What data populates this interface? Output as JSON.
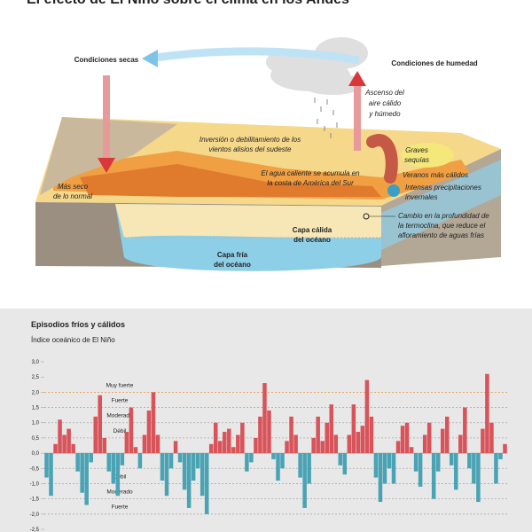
{
  "header": {
    "title": "El efecto de El Niño sobre el clima en los Andes"
  },
  "diagram": {
    "dry": "Condiciones secas",
    "wet": "Condiciones de humedad",
    "rise": [
      "Ascenso del",
      "aire cálido",
      "y húmedo"
    ],
    "winds": [
      "Inversión o debilitamiento de los",
      "vientos alisios del sudeste"
    ],
    "drought": [
      "Graves",
      "sequías"
    ],
    "warm_water": [
      "El agua caliente se acumula en",
      "la costa de América del Sur"
    ],
    "summers": "Veranos más cálidos",
    "drier": [
      "Más seco",
      "de lo normal"
    ],
    "rains": [
      "Intensas precipitaciones",
      "invernales"
    ],
    "thermocline": [
      "Cambio en la profundidad de",
      "la termoclina, que reduce el",
      "afloramiento de aguas frías"
    ],
    "warm_layer": [
      "Capa cálida",
      "del océano"
    ],
    "cold_layer": [
      "Capa fría",
      "del océano"
    ]
  },
  "chart_data": {
    "type": "bar",
    "title": "Episodios fríos y cálidos",
    "subtitle": "Índice oceánico de El Niño",
    "positive_color": "#d9535a",
    "negative_color": "#4aa3b4",
    "ylim": [
      -2.5,
      3
    ],
    "yticks": [
      {
        "value": 3,
        "label": "3,0"
      },
      {
        "value": 2.5,
        "label": "2,5"
      },
      {
        "value": 2,
        "label": "2,0"
      },
      {
        "value": 1.5,
        "label": "1,5"
      },
      {
        "value": 1,
        "label": "1,0"
      },
      {
        "value": 0.5,
        "label": "0,5"
      },
      {
        "value": 0,
        "label": "0,0"
      },
      {
        "value": -0.5,
        "label": "-0,5"
      },
      {
        "value": -1,
        "label": "-1,0"
      },
      {
        "value": -1.5,
        "label": "-1,5"
      },
      {
        "value": -2,
        "label": "-2,0"
      },
      {
        "value": -2.5,
        "label": "-2,5"
      }
    ],
    "thresholds": [
      {
        "value": 2,
        "label": "Muy fuerte",
        "color": "#e8903a"
      },
      {
        "value": 1.5,
        "label": "Fuerte",
        "color": "#aaaaaa"
      },
      {
        "value": 1,
        "label": "Moderado",
        "color": "#aaaaaa"
      },
      {
        "value": 0.5,
        "label": "Débil",
        "color": "#aaaaaa"
      },
      {
        "value": -0.5,
        "label": "Débil",
        "color": "#aaaaaa"
      },
      {
        "value": -1,
        "label": "Moderado",
        "color": "#aaaaaa"
      },
      {
        "value": -1.5,
        "label": "Fuerte",
        "color": "#aaaaaa"
      },
      {
        "value": -2,
        "label": null,
        "color": "#aaaaaa"
      }
    ],
    "values": [
      -0.8,
      -1.4,
      0.3,
      1.1,
      0.6,
      0.8,
      0.3,
      -0.6,
      -1.3,
      -1.7,
      -0.3,
      1.2,
      1.9,
      0.5,
      -0.6,
      -1.0,
      -1.4,
      -0.4,
      0.7,
      1.5,
      0.2,
      -0.5,
      0.6,
      1.4,
      2.0,
      0.6,
      -0.9,
      -1.4,
      -0.5,
      0.4,
      -0.3,
      -1.2,
      -1.8,
      -0.9,
      -0.5,
      -1.4,
      -2.0,
      0.3,
      1.0,
      0.4,
      0.7,
      0.8,
      0.2,
      0.6,
      1.0,
      -0.6,
      -0.3,
      0.5,
      1.2,
      2.3,
      1.4,
      -0.2,
      -0.9,
      -0.5,
      0.4,
      1.2,
      0.6,
      -0.8,
      -1.8,
      -1.0,
      0.5,
      1.2,
      0.4,
      1.0,
      1.6,
      0.6,
      -0.4,
      -0.7,
      0.6,
      1.6,
      0.7,
      0.9,
      2.4,
      1.2,
      -0.8,
      -1.6,
      -1.0,
      -0.5,
      -1.0,
      0.4,
      0.9,
      1.0,
      0.2,
      -0.6,
      -1.1,
      0.6,
      1.0,
      -1.5,
      -0.6,
      0.8,
      1.2,
      -0.4,
      -1.2,
      0.6,
      1.5,
      -0.5,
      -1.0,
      -1.6,
      0.8,
      2.6,
      1.0,
      -1.0,
      -0.2,
      0.3
    ]
  }
}
